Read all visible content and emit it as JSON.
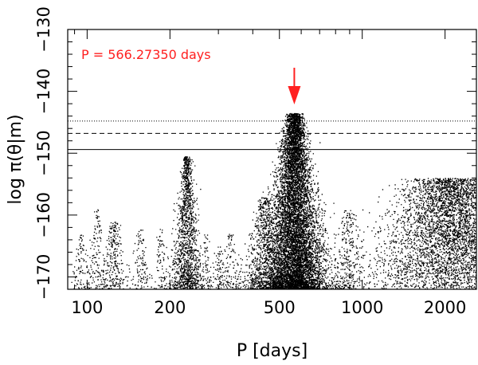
{
  "chart_data": {
    "type": "scatter",
    "title": "",
    "xlabel": "P [days]",
    "ylabel": "log π(θ|m)",
    "x_scale": "log",
    "xlim": [
      85,
      2600
    ],
    "ylim": [
      -172,
      -130
    ],
    "x_tick_labels": [
      "100",
      "200",
      "500",
      "1000",
      "2000"
    ],
    "x_tick_values": [
      100,
      200,
      500,
      1000,
      2000
    ],
    "y_tick_labels": [
      "−170",
      "−160",
      "−150",
      "−140",
      "−130"
    ],
    "y_tick_values": [
      -170,
      -160,
      -150,
      -140,
      -130
    ],
    "grid": false,
    "annotation": {
      "text": "P = 566.27350 days",
      "color": "#ff2020",
      "arrow_x": 566.2735,
      "arrow_points_down": true
    },
    "thresholds": [
      {
        "style": "dotted",
        "y": -144.8
      },
      {
        "style": "dashed",
        "y": -146.8
      },
      {
        "style": "solid",
        "y": -149.4
      }
    ],
    "series": [
      {
        "color": "#000000",
        "clusters": [
          {
            "x_center": 566,
            "x_spread": 0.055,
            "y_top": -143.5,
            "y_bottom": -172,
            "points": 9000,
            "shape": "peak"
          },
          {
            "x_center": 230,
            "x_spread": 0.028,
            "y_top": -150.5,
            "y_bottom": -172,
            "points": 1500,
            "shape": "peak"
          },
          {
            "x_center": 440,
            "x_spread": 0.045,
            "y_top": -157,
            "y_bottom": -172,
            "points": 900,
            "shape": "peak"
          },
          {
            "x_center": 2100,
            "x_spread": 0.16,
            "y_top": -154,
            "y_bottom": -172,
            "points": 4500,
            "shape": "blob"
          },
          {
            "x_center": 880,
            "x_spread": 0.04,
            "y_top": -159,
            "y_bottom": -172,
            "points": 350,
            "shape": "peak"
          },
          {
            "x_center": 125,
            "x_spread": 0.03,
            "y_top": -161,
            "y_bottom": -172,
            "points": 300,
            "shape": "peak"
          },
          {
            "x_center": 108,
            "x_spread": 0.02,
            "y_top": -159,
            "y_bottom": -172,
            "points": 150,
            "shape": "peak"
          },
          {
            "x_center": 330,
            "x_spread": 0.02,
            "y_top": -163,
            "y_bottom": -172,
            "points": 120,
            "shape": "peak"
          },
          {
            "x_center": 300,
            "x_spread": 0.02,
            "y_top": -165,
            "y_bottom": -172,
            "points": 80,
            "shape": "peak"
          },
          {
            "x_center": 270,
            "x_spread": 0.02,
            "y_top": -163,
            "y_bottom": -172,
            "points": 70,
            "shape": "peak"
          },
          {
            "x_center": 185,
            "x_spread": 0.02,
            "y_top": -162,
            "y_bottom": -172,
            "points": 100,
            "shape": "peak"
          },
          {
            "x_center": 155,
            "x_spread": 0.02,
            "y_top": -162,
            "y_bottom": -172,
            "points": 120,
            "shape": "peak"
          },
          {
            "x_center": 95,
            "x_spread": 0.02,
            "y_top": -163,
            "y_bottom": -172,
            "points": 100,
            "shape": "peak"
          },
          {
            "x_center": 1200,
            "x_spread": 0.08,
            "y_top": -162,
            "y_bottom": -172,
            "points": 60,
            "shape": "peak"
          }
        ]
      }
    ]
  }
}
